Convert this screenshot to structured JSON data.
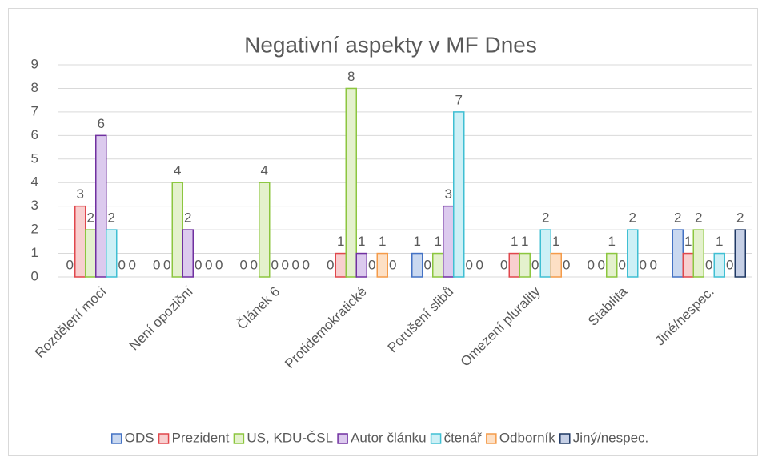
{
  "chart_data": {
    "type": "bar",
    "title": "Negativní aspekty v MF Dnes",
    "categories": [
      "Rozdělení moci",
      "Není opoziční",
      "Článek 6",
      "Protidemokratické",
      "Porušení slibů",
      "Omezení plurality",
      "Stabilita",
      "Jiné/nespec."
    ],
    "series": [
      {
        "name": "ODS",
        "color": "#4472c4",
        "fill": "#c9d8f0",
        "values": [
          0,
          0,
          0,
          0,
          1,
          0,
          0,
          2
        ]
      },
      {
        "name": "Prezident",
        "color": "#e0474c",
        "fill": "#f8cfcf",
        "values": [
          3,
          0,
          0,
          1,
          0,
          1,
          0,
          1
        ]
      },
      {
        "name": "US, KDU-ČSL",
        "color": "#8cc63f",
        "fill": "#e4f1cd",
        "values": [
          2,
          4,
          4,
          8,
          1,
          1,
          1,
          2
        ]
      },
      {
        "name": "Autor článku",
        "color": "#7030a0",
        "fill": "#dccaee",
        "values": [
          6,
          2,
          0,
          1,
          3,
          0,
          0,
          0
        ]
      },
      {
        "name": "čtenář",
        "color": "#3fbfd3",
        "fill": "#cdf0f6",
        "values": [
          2,
          0,
          0,
          0,
          7,
          2,
          2,
          1
        ]
      },
      {
        "name": "Odborník",
        "color": "#f49b4a",
        "fill": "#fde0c5",
        "values": [
          0,
          0,
          0,
          1,
          0,
          1,
          0,
          0
        ]
      },
      {
        "name": "Jiný/nespec.",
        "color": "#1f3864",
        "fill": "#c6d0e6",
        "values": [
          0,
          0,
          0,
          0,
          0,
          0,
          0,
          2
        ]
      }
    ],
    "ylim": [
      0,
      9
    ],
    "yticks": [
      0,
      1,
      2,
      3,
      4,
      5,
      6,
      7,
      8,
      9
    ],
    "grid": true,
    "legend": "bottom"
  }
}
